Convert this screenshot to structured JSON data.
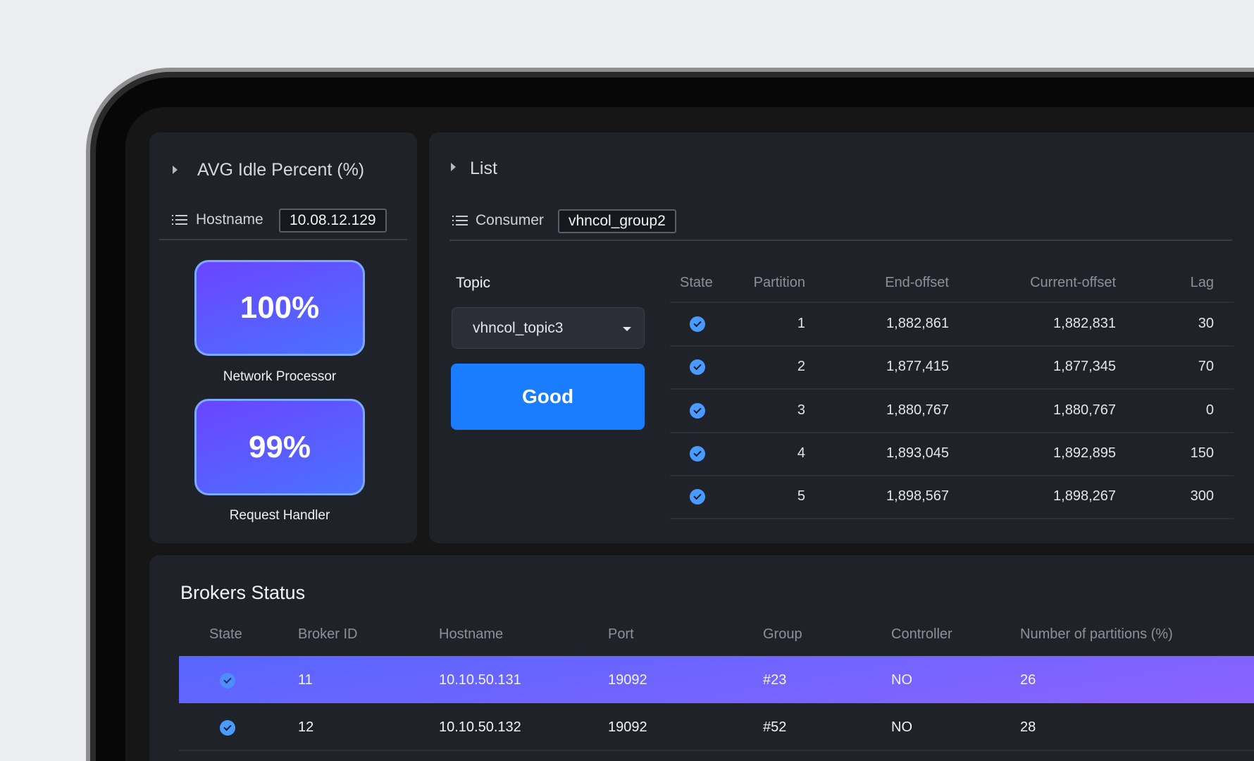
{
  "idle_panel": {
    "title": "AVG Idle Percent (%)",
    "hostname_label": "Hostname",
    "hostname_value": "10.08.12.129",
    "metrics": [
      {
        "value": "100%",
        "label": "Network Processor"
      },
      {
        "value": "99%",
        "label": "Request Handler"
      }
    ]
  },
  "list_panel": {
    "title": "List",
    "consumer_label": "Consumer",
    "consumer_value": "vhncol_group2",
    "topic_label": "Topic",
    "topic_value": "vhncol_topic3",
    "status_button": "Good",
    "columns": [
      "State",
      "Partition",
      "End-offset",
      "Current-offset",
      "Lag"
    ],
    "rows": [
      {
        "partition": "1",
        "end": "1,882,861",
        "current": "1,882,831",
        "lag": "30"
      },
      {
        "partition": "2",
        "end": "1,877,415",
        "current": "1,877,345",
        "lag": "70"
      },
      {
        "partition": "3",
        "end": "1,880,767",
        "current": "1,880,767",
        "lag": "0"
      },
      {
        "partition": "4",
        "end": "1,893,045",
        "current": "1,892,895",
        "lag": "150"
      },
      {
        "partition": "5",
        "end": "1,898,567",
        "current": "1,898,267",
        "lag": "300"
      }
    ]
  },
  "brokers": {
    "title": "Brokers Status",
    "columns": [
      "State",
      "Broker ID",
      "Hostname",
      "Port",
      "Group",
      "Controller",
      "Number of partitions (%)"
    ],
    "rows": [
      {
        "id": "11",
        "host": "10.10.50.131",
        "port": "19092",
        "group": "#23",
        "controller": "NO",
        "partitions": "26"
      },
      {
        "id": "12",
        "host": "10.10.50.132",
        "port": "19092",
        "group": "#52",
        "controller": "NO",
        "partitions": "28"
      }
    ]
  },
  "colors": {
    "accent": "#1a7cff",
    "check": "#4a9bff",
    "panel": "#20222a"
  }
}
